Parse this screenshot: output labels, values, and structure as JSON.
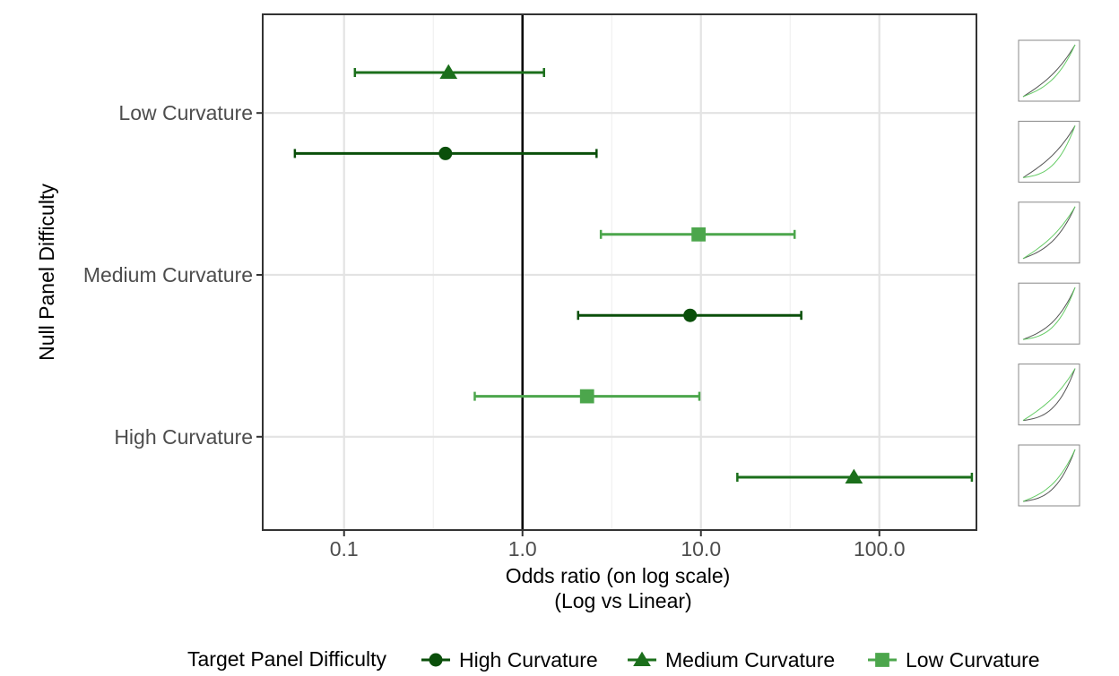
{
  "chart_data": {
    "type": "scatter",
    "title": "",
    "xlabel": [
      "Odds ratio (on log scale)",
      "(Log vs Linear)"
    ],
    "ylabel": "Null Panel Difficulty",
    "x_scale": "log10",
    "xlim": [
      0.035,
      350
    ],
    "x_ticks": [
      0.1,
      1.0,
      10.0,
      100.0
    ],
    "x_tick_labels": [
      "0.1",
      "1.0",
      "10.0",
      "100.0"
    ],
    "reference_line_x": 1.0,
    "grid": true,
    "categories": [
      "Low Curvature",
      "Medium Curvature",
      "High Curvature"
    ],
    "legend": {
      "title": "Target Panel Difficulty",
      "position": "bottom",
      "entries": [
        "High Curvature",
        "Medium Curvature",
        "Low Curvature"
      ]
    },
    "series": [
      {
        "name": "High Curvature",
        "color": "#0a4f0a",
        "marker": "circle",
        "points": [
          {
            "category": "Low Curvature",
            "estimate": 0.37,
            "lower": 0.053,
            "upper": 2.6
          },
          {
            "category": "Medium Curvature",
            "estimate": 8.7,
            "lower": 2.05,
            "upper": 36.5
          },
          {
            "category": "High Curvature",
            "estimate": null,
            "lower": null,
            "upper": null
          }
        ]
      },
      {
        "name": "Medium Curvature",
        "color": "#1b6f1b",
        "marker": "triangle",
        "points": [
          {
            "category": "Low Curvature",
            "estimate": 0.385,
            "lower": 0.115,
            "upper": 1.32
          },
          {
            "category": "Medium Curvature",
            "estimate": null,
            "lower": null,
            "upper": null
          },
          {
            "category": "High Curvature",
            "estimate": 72,
            "lower": 16,
            "upper": 330
          }
        ]
      },
      {
        "name": "Low Curvature",
        "color": "#4ca64c",
        "marker": "square",
        "points": [
          {
            "category": "Low Curvature",
            "estimate": null,
            "lower": null,
            "upper": null
          },
          {
            "category": "Medium Curvature",
            "estimate": 9.7,
            "lower": 2.75,
            "upper": 33.5
          },
          {
            "category": "High Curvature",
            "estimate": 2.3,
            "lower": 0.54,
            "upper": 9.8
          }
        ]
      }
    ],
    "rows": [
      {
        "series": "Medium Curvature",
        "category": "Low Curvature"
      },
      {
        "series": "High Curvature",
        "category": "Low Curvature"
      },
      {
        "series": "Low Curvature",
        "category": "Medium Curvature"
      },
      {
        "series": "High Curvature",
        "category": "Medium Curvature"
      },
      {
        "series": "Low Curvature",
        "category": "High Curvature"
      },
      {
        "series": "Medium Curvature",
        "category": "High Curvature"
      }
    ],
    "thumbnails": [
      {
        "target": "Medium Curvature",
        "null": "Low Curvature"
      },
      {
        "target": "High Curvature",
        "null": "Low Curvature"
      },
      {
        "target": "Low Curvature",
        "null": "Medium Curvature"
      },
      {
        "target": "High Curvature",
        "null": "Medium Curvature"
      },
      {
        "target": "Low Curvature",
        "null": "High Curvature"
      },
      {
        "target": "Medium Curvature",
        "null": "High Curvature"
      }
    ],
    "thumbnail_curve_colors": {
      "null": "#555555",
      "target": "#66cc66"
    }
  }
}
